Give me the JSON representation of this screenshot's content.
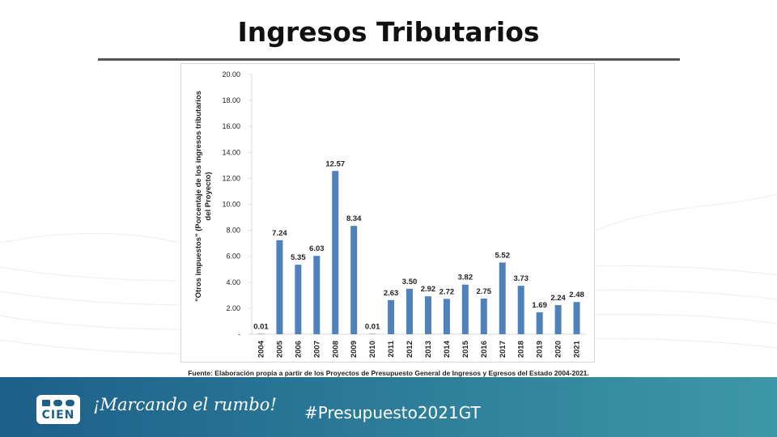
{
  "slide": {
    "title": "Ingresos Tributarios",
    "source_note": "Fuente: Elaboración propia a partir de los Proyectos de Presupuesto General de Ingresos y Egresos del Estado 2004-2021."
  },
  "footer": {
    "logo_text": "CIEN",
    "slogan": "¡Marcando el rumbo!",
    "hashtag": "#Presupuesto2021GT"
  },
  "colors": {
    "bar": "#4f81bd",
    "footer_start": "#1c5f89",
    "footer_end": "#3d97a6"
  },
  "chart_data": {
    "type": "bar",
    "title": "",
    "xlabel": "",
    "ylabel": "\"Otros impuestos\" (Porcentaje de los ingresos tributarios del Proyecto)",
    "ylabel_lines": [
      "\"Otros impuestos\" (Porcentaje de los ingresos tributarios",
      "del Proyecto)"
    ],
    "categories": [
      "2004",
      "2005",
      "2006",
      "2007",
      "2008",
      "2009",
      "2010",
      "2011",
      "2012",
      "2013",
      "2014",
      "2015",
      "2016",
      "2017",
      "2018",
      "2019",
      "2020",
      "2021"
    ],
    "values": [
      0.01,
      7.24,
      5.35,
      6.03,
      12.57,
      8.34,
      0.01,
      2.63,
      3.5,
      2.92,
      2.72,
      3.82,
      2.75,
      5.52,
      3.73,
      1.69,
      2.24,
      2.48
    ],
    "data_labels": [
      "0.01",
      "7.24",
      "5.35",
      "6.03",
      "12.57",
      "8.34",
      "0.01",
      "2.63",
      "3.50",
      "2.92",
      "2.72",
      "3.82",
      "2.75",
      "5.52",
      "3.73",
      "1.69",
      "2.24",
      "2.48"
    ],
    "ylim": [
      0,
      20
    ],
    "yticks": [
      0,
      2,
      4,
      6,
      8,
      10,
      12,
      14,
      16,
      18,
      20
    ],
    "ytick_labels": [
      "-",
      "2.00",
      "4.00",
      "6.00",
      "8.00",
      "10.00",
      "12.00",
      "14.00",
      "16.00",
      "18.00",
      "20.00"
    ],
    "grid": false,
    "legend": "none"
  }
}
